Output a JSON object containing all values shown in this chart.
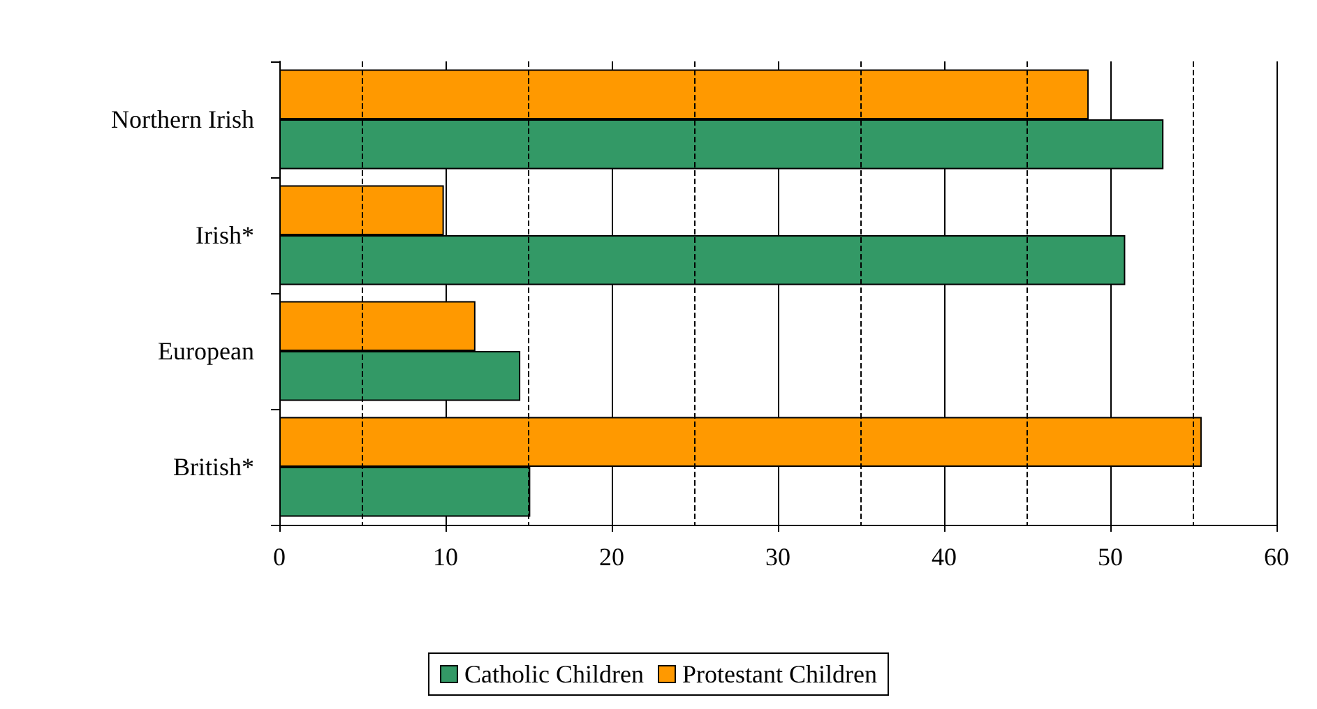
{
  "chart_data": {
    "type": "bar",
    "orientation": "horizontal",
    "categories": [
      "Northern Irish",
      "Irish*",
      "European",
      "British*"
    ],
    "series": [
      {
        "name": "Catholic Children",
        "color": "#339966",
        "values": [
          53.2,
          50.9,
          14.5,
          15.1
        ]
      },
      {
        "name": "Protestant Children",
        "color": "#ff9900",
        "values": [
          48.7,
          9.9,
          11.8,
          55.5
        ]
      }
    ],
    "xlim": [
      0,
      60
    ],
    "xticks": [
      0,
      {
        "value": 5,
        "label": null
      },
      10,
      {
        "value": 15,
        "label": null
      },
      20,
      {
        "value": 25,
        "label": null
      },
      30,
      {
        "value": 35,
        "label": null
      },
      40,
      {
        "value": 45,
        "label": null
      },
      50,
      {
        "value": 55,
        "label": null
      },
      60
    ],
    "grid": "x",
    "legend": "bottom"
  }
}
